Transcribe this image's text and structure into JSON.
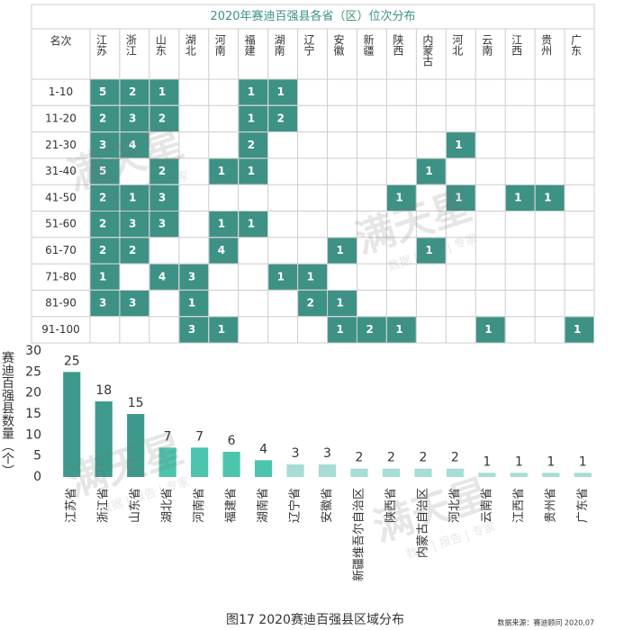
{
  "table": {
    "title": "2020年赛迪百强县各省（区）位次分布",
    "corner": "名次",
    "color": "#3d9185",
    "columns": [
      "江苏",
      "浙江",
      "山东",
      "湖北",
      "河南",
      "福建",
      "湖南",
      "辽宁",
      "安徽",
      "新疆",
      "陕西",
      "内蒙古",
      "河北",
      "云南",
      "江西",
      "贵州",
      "广东"
    ],
    "rows": [
      {
        "label": "1-10",
        "cells": [
          5,
          2,
          1,
          null,
          null,
          1,
          1,
          null,
          null,
          null,
          null,
          null,
          null,
          null,
          null,
          null,
          null
        ]
      },
      {
        "label": "11-20",
        "cells": [
          2,
          3,
          2,
          null,
          null,
          1,
          2,
          null,
          null,
          null,
          null,
          null,
          null,
          null,
          null,
          null,
          null
        ]
      },
      {
        "label": "21-30",
        "cells": [
          3,
          4,
          null,
          null,
          null,
          2,
          null,
          null,
          null,
          null,
          null,
          null,
          1,
          null,
          null,
          null,
          null
        ]
      },
      {
        "label": "31-40",
        "cells": [
          5,
          null,
          2,
          null,
          1,
          1,
          null,
          null,
          null,
          null,
          null,
          1,
          null,
          null,
          null,
          null,
          null
        ]
      },
      {
        "label": "41-50",
        "cells": [
          2,
          1,
          3,
          null,
          null,
          null,
          null,
          null,
          null,
          null,
          1,
          null,
          1,
          null,
          1,
          1,
          null
        ]
      },
      {
        "label": "51-60",
        "cells": [
          2,
          3,
          3,
          null,
          1,
          1,
          null,
          null,
          null,
          null,
          null,
          null,
          null,
          null,
          null,
          null,
          null
        ]
      },
      {
        "label": "61-70",
        "cells": [
          2,
          2,
          null,
          null,
          4,
          null,
          null,
          null,
          1,
          null,
          null,
          1,
          null,
          null,
          null,
          null,
          null
        ]
      },
      {
        "label": "71-80",
        "cells": [
          1,
          null,
          4,
          3,
          null,
          null,
          1,
          1,
          null,
          null,
          null,
          null,
          null,
          null,
          null,
          null,
          null
        ]
      },
      {
        "label": "81-90",
        "cells": [
          3,
          3,
          null,
          1,
          null,
          null,
          null,
          2,
          1,
          null,
          null,
          null,
          null,
          null,
          null,
          null,
          null
        ]
      },
      {
        "label": "91-100",
        "cells": [
          null,
          null,
          null,
          3,
          1,
          null,
          null,
          null,
          1,
          2,
          1,
          null,
          null,
          1,
          null,
          null,
          1
        ]
      }
    ]
  },
  "chart_data": {
    "type": "bar",
    "y_label": "赛迪百强县数量（个）",
    "categories": [
      "江苏省",
      "浙江省",
      "山东省",
      "湖北省",
      "河南省",
      "福建省",
      "湖南省",
      "辽宁省",
      "安徽省",
      "新疆维吾尔自治区",
      "陕西省",
      "内蒙古自治区",
      "河北省",
      "云南省",
      "江西省",
      "贵州省",
      "广东省"
    ],
    "values": [
      25,
      18,
      15,
      7,
      7,
      6,
      4,
      3,
      3,
      2,
      2,
      2,
      2,
      1,
      1,
      1,
      1
    ],
    "colors": [
      "#3d9a8c",
      "#3d9a8c",
      "#3d9a8c",
      "#4cc4ae",
      "#4cc4ae",
      "#4cc4ae",
      "#4cc4ae",
      "#a6ddd4",
      "#a6ddd4",
      "#a6ddd4",
      "#a6ddd4",
      "#a6ddd4",
      "#a6ddd4",
      "#a6ddd4",
      "#a6ddd4",
      "#a6ddd4",
      "#a6ddd4"
    ],
    "ylim": [
      0,
      30
    ],
    "yticks": [
      0,
      5,
      10,
      15,
      20,
      25,
      30
    ]
  },
  "watermark": {
    "brand": "满天星",
    "tagline": "数据 | 报告 | 专家"
  },
  "caption": "图17  2020赛迪百强县区域分布",
  "source": "数据来源：赛迪顾问  2020,07"
}
